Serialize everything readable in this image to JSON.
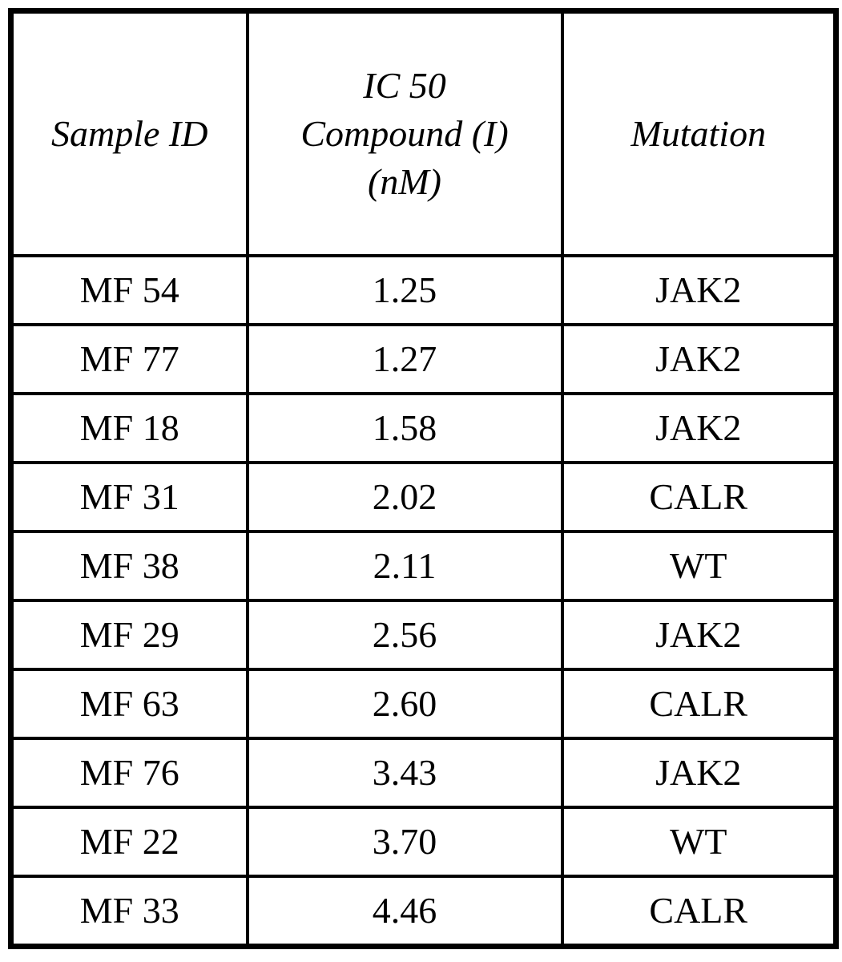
{
  "table": {
    "headers": [
      "Sample ID",
      "IC 50 Compound (I) (nM)",
      "Mutation"
    ],
    "header_ic50_lines": [
      "IC 50",
      "Compound (I)",
      "(nM)"
    ],
    "rows": [
      [
        "MF 54",
        "1.25",
        "JAK2"
      ],
      [
        "MF 77",
        "1.27",
        "JAK2"
      ],
      [
        "MF 18",
        "1.58",
        "JAK2"
      ],
      [
        "MF 31",
        "2.02",
        "CALR"
      ],
      [
        "MF 38",
        "2.11",
        "WT"
      ],
      [
        "MF 29",
        "2.56",
        "JAK2"
      ],
      [
        "MF 63",
        "2.60",
        "CALR"
      ],
      [
        "MF 76",
        "3.43",
        "JAK2"
      ],
      [
        "MF 22",
        "3.70",
        "WT"
      ],
      [
        "MF 33",
        "4.46",
        "CALR"
      ]
    ],
    "border_color": "#000000",
    "background_color": "#ffffff"
  }
}
